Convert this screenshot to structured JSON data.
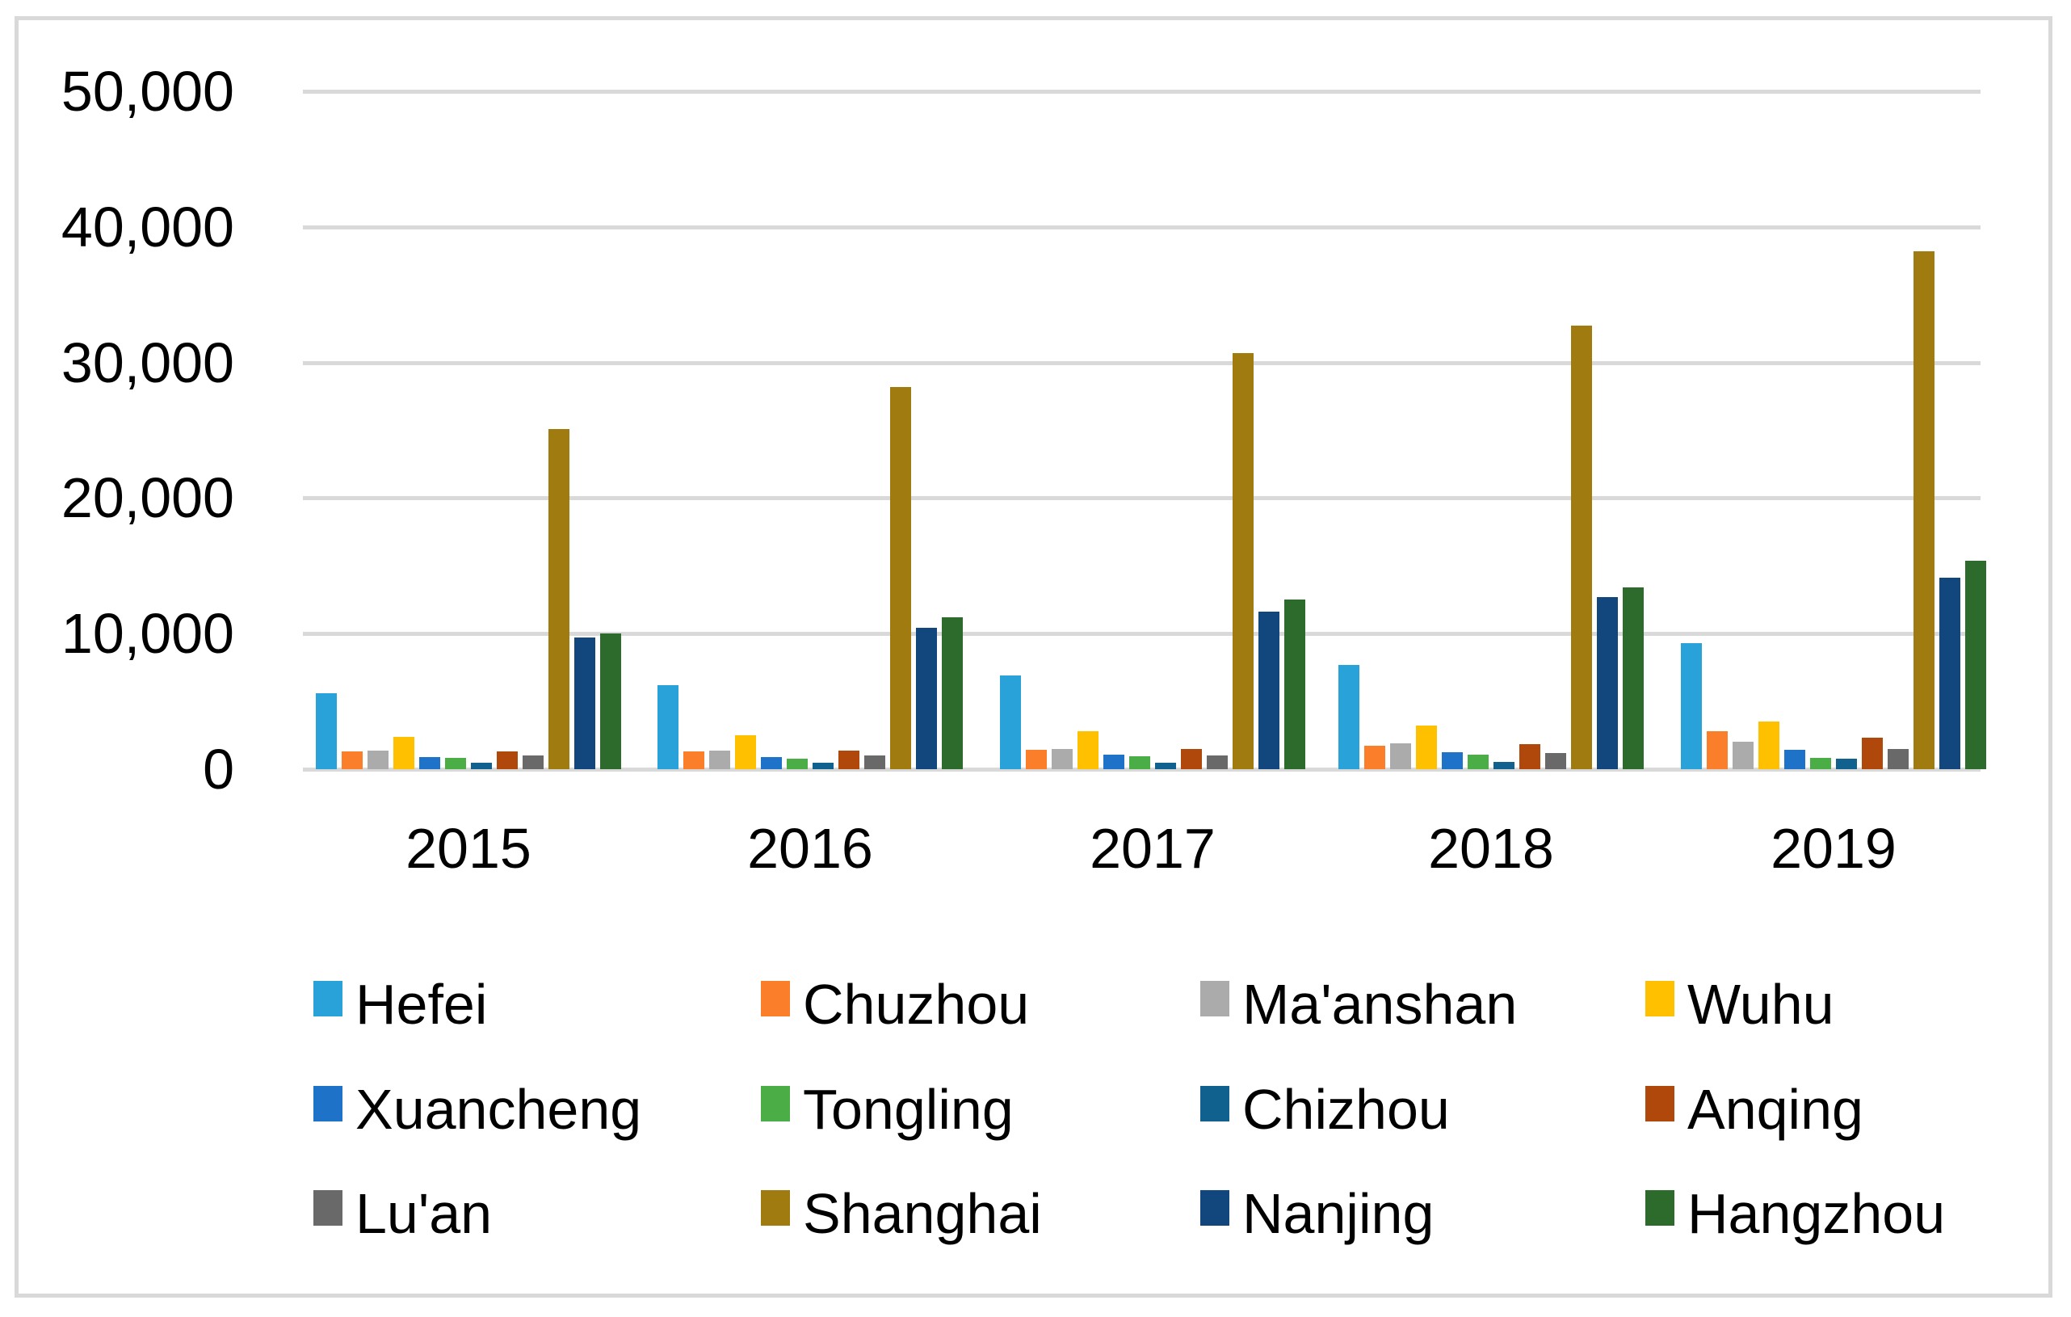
{
  "chart_data": {
    "type": "bar",
    "title": "",
    "xlabel": "",
    "ylabel": "",
    "categories": [
      "2015",
      "2016",
      "2017",
      "2018",
      "2019"
    ],
    "series": [
      {
        "name": "Hefei",
        "color": "#29A2DA",
        "values": [
          5600,
          6200,
          6900,
          7700,
          9300
        ]
      },
      {
        "name": "Chuzhou",
        "color": "#FB7E2B",
        "values": [
          1300,
          1300,
          1450,
          1750,
          2800
        ]
      },
      {
        "name": "Ma'anshan",
        "color": "#ABABAB",
        "values": [
          1350,
          1400,
          1500,
          1900,
          2000
        ]
      },
      {
        "name": "Wuhu",
        "color": "#FFC000",
        "values": [
          2400,
          2500,
          2800,
          3200,
          3500
        ]
      },
      {
        "name": "Xuancheng",
        "color": "#1E73C8",
        "values": [
          900,
          900,
          1050,
          1250,
          1450
        ]
      },
      {
        "name": "Tongling",
        "color": "#4BAD46",
        "values": [
          850,
          800,
          950,
          1100,
          850
        ]
      },
      {
        "name": "Chizhou",
        "color": "#10618E",
        "values": [
          450,
          450,
          450,
          550,
          750
        ]
      },
      {
        "name": "Anqing",
        "color": "#B0470B",
        "values": [
          1300,
          1350,
          1500,
          1850,
          2300
        ]
      },
      {
        "name": "Lu'an",
        "color": "#696969",
        "values": [
          1000,
          1000,
          1000,
          1200,
          1500
        ]
      },
      {
        "name": "Shanghai",
        "color": "#A07C10",
        "values": [
          25100,
          28200,
          30700,
          32700,
          38200
        ]
      },
      {
        "name": "Nanjing",
        "color": "#12477D",
        "values": [
          9700,
          10400,
          11600,
          12700,
          14100
        ]
      },
      {
        "name": "Hangzhou",
        "color": "#2C6B2B",
        "values": [
          10000,
          11200,
          12500,
          13400,
          15400
        ]
      }
    ],
    "ylim": [
      0,
      50000
    ],
    "y_tick_interval": 10000,
    "y_ticks": [
      "0",
      "10,000",
      "20,000",
      "30,000",
      "40,000",
      "50,000"
    ],
    "grid": "horizontal",
    "gridline_color": "#D9D9D9",
    "legend_position": "bottom",
    "legend_rows": [
      [
        "Hefei",
        "Chuzhou",
        "Ma'anshan",
        "Wuhu"
      ],
      [
        "Xuancheng",
        "Tongling",
        "Chizhou",
        "Anqing"
      ],
      [
        "Lu'an",
        "Shanghai",
        "Nanjing",
        "Hangzhou"
      ]
    ]
  },
  "frame": {
    "border_color": "#D9D9D9",
    "background_color": "#FFFFFF"
  }
}
